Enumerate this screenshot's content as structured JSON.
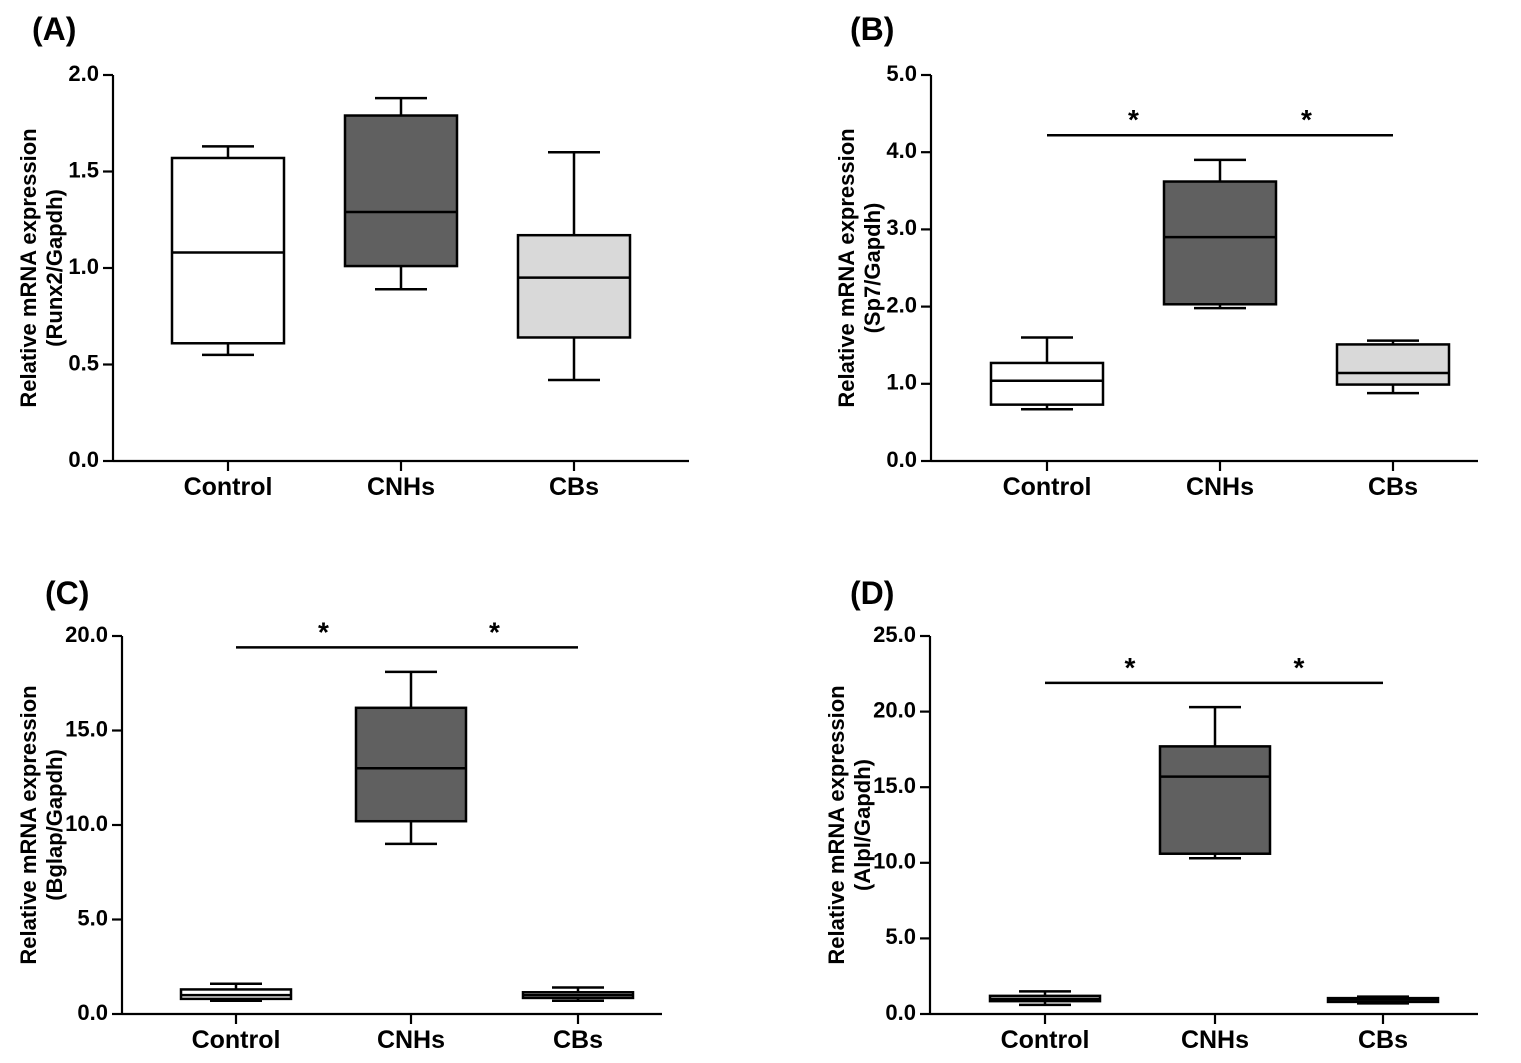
{
  "chart_data": [
    {
      "type": "box",
      "panel_label": "(A)",
      "ylabel_line1": "Relative mRNA expression",
      "ylabel_line2": "(Runx2/Gapdh)",
      "ylim": [
        0,
        2.0
      ],
      "yticks": [
        0.0,
        0.5,
        1.0,
        1.5,
        2.0
      ],
      "ytick_labels": [
        "0.0",
        "0.5",
        "1.0",
        "1.5",
        "2.0"
      ],
      "categories": [
        "Control",
        "CNHs",
        "CBs"
      ],
      "fills": [
        "#ffffff",
        "#606060",
        "#d9d9d9"
      ],
      "boxes": [
        {
          "min": 0.55,
          "q1": 0.61,
          "median": 1.08,
          "q3": 1.57,
          "max": 1.63
        },
        {
          "min": 0.89,
          "q1": 1.01,
          "median": 1.29,
          "q3": 1.79,
          "max": 1.88
        },
        {
          "min": 0.42,
          "q1": 0.64,
          "median": 0.95,
          "q3": 1.17,
          "max": 1.6
        }
      ],
      "significance": []
    },
    {
      "type": "box",
      "panel_label": "(B)",
      "ylabel_line1": "Relative mRNA expression",
      "ylabel_line2": "(Sp7/Gapdh)",
      "ylim": [
        0,
        5.0
      ],
      "yticks": [
        0.0,
        1.0,
        2.0,
        3.0,
        4.0,
        5.0
      ],
      "ytick_labels": [
        "0.0",
        "1.0",
        "2.0",
        "3.0",
        "4.0",
        "5.0"
      ],
      "categories": [
        "Control",
        "CNHs",
        "CBs"
      ],
      "fills": [
        "#ffffff",
        "#606060",
        "#d9d9d9"
      ],
      "boxes": [
        {
          "min": 0.67,
          "q1": 0.73,
          "median": 1.04,
          "q3": 1.27,
          "max": 1.6
        },
        {
          "min": 1.98,
          "q1": 2.03,
          "median": 2.9,
          "q3": 3.62,
          "max": 3.9
        },
        {
          "min": 0.88,
          "q1": 0.99,
          "median": 1.14,
          "q3": 1.51,
          "max": 1.56
        }
      ],
      "significance": [
        {
          "from": 0,
          "to": 1,
          "y": 4.22,
          "label": "*"
        },
        {
          "from": 1,
          "to": 2,
          "y": 4.22,
          "label": "*"
        }
      ]
    },
    {
      "type": "box",
      "panel_label": "(C)",
      "ylabel_line1": "Relative mRNA expression",
      "ylabel_line2": "(Bglap/Gapdh)",
      "ylim": [
        0,
        20.0
      ],
      "yticks": [
        0.0,
        5.0,
        10.0,
        15.0,
        20.0
      ],
      "ytick_labels": [
        "0.0",
        "5.0",
        "10.0",
        "15.0",
        "20.0"
      ],
      "categories": [
        "Control",
        "CNHs",
        "CBs"
      ],
      "fills": [
        "#ffffff",
        "#606060",
        "#d9d9d9"
      ],
      "boxes": [
        {
          "min": 0.7,
          "q1": 0.8,
          "median": 1.0,
          "q3": 1.3,
          "max": 1.6
        },
        {
          "min": 9.0,
          "q1": 10.2,
          "median": 13.0,
          "q3": 16.2,
          "max": 18.1
        },
        {
          "min": 0.7,
          "q1": 0.85,
          "median": 1.0,
          "q3": 1.15,
          "max": 1.4
        }
      ],
      "significance": [
        {
          "from": 0,
          "to": 1,
          "y": 19.4,
          "label": "*"
        },
        {
          "from": 1,
          "to": 2,
          "y": 19.4,
          "label": "*"
        }
      ]
    },
    {
      "type": "box",
      "panel_label": "(D)",
      "ylabel_line1": "Relative mRNA expression",
      "ylabel_line2": "(Alpl/Gapdh)",
      "ylim": [
        0,
        25.0
      ],
      "yticks": [
        0.0,
        5.0,
        10.0,
        15.0,
        20.0,
        25.0
      ],
      "ytick_labels": [
        "0.0",
        "5.0",
        "10.0",
        "15.0",
        "20.0",
        "25.0"
      ],
      "categories": [
        "Control",
        "CNHs",
        "CBs"
      ],
      "fills": [
        "#ffffff",
        "#606060",
        "#d9d9d9"
      ],
      "boxes": [
        {
          "min": 0.6,
          "q1": 0.85,
          "median": 1.0,
          "q3": 1.2,
          "max": 1.5
        },
        {
          "min": 10.3,
          "q1": 10.6,
          "median": 15.7,
          "q3": 17.7,
          "max": 20.3
        },
        {
          "min": 0.7,
          "q1": 0.8,
          "median": 0.95,
          "q3": 1.05,
          "max": 1.15
        }
      ],
      "significance": [
        {
          "from": 0,
          "to": 1,
          "y": 21.9,
          "label": "*"
        },
        {
          "from": 1,
          "to": 2,
          "y": 21.9,
          "label": "*"
        }
      ]
    }
  ]
}
